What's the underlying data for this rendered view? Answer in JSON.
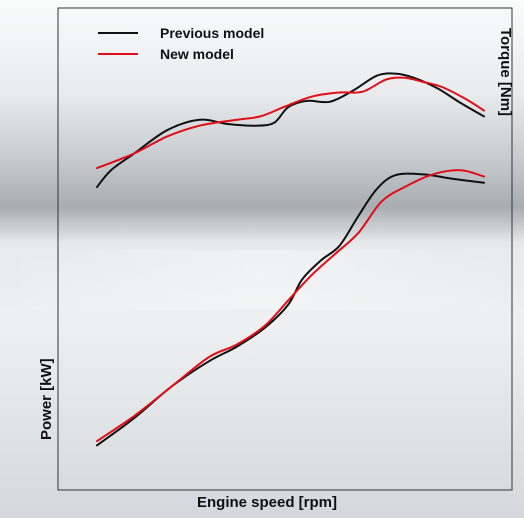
{
  "chart_data": {
    "type": "line",
    "title": "",
    "xlabel": "Engine speed [rpm]",
    "ylabel": "Power [kW]",
    "y2label": "Torque [Nm]",
    "xlim": [
      0,
      100
    ],
    "ylim": [
      0,
      100
    ],
    "grid": false,
    "legend_position": "top-left",
    "series": [
      {
        "name": "Previous model",
        "group": "torque",
        "color": "#111111",
        "points": [
          [
            0,
            65
          ],
          [
            3,
            69
          ],
          [
            8,
            73
          ],
          [
            15,
            78.5
          ],
          [
            22,
            81
          ],
          [
            28,
            80
          ],
          [
            34,
            79.6
          ],
          [
            38,
            80.3
          ],
          [
            41,
            84
          ],
          [
            45,
            85.5
          ],
          [
            50,
            85.3
          ],
          [
            55,
            88
          ],
          [
            60,
            91.5
          ],
          [
            64,
            92
          ],
          [
            68,
            91
          ],
          [
            73,
            88.5
          ],
          [
            78,
            85
          ],
          [
            83,
            81.8
          ]
        ]
      },
      {
        "name": "New model",
        "group": "torque",
        "color": "#e00e18",
        "points": [
          [
            0,
            69.5
          ],
          [
            8,
            73
          ],
          [
            15,
            77
          ],
          [
            22,
            79.6
          ],
          [
            30,
            81
          ],
          [
            35,
            81.8
          ],
          [
            40,
            84
          ],
          [
            46,
            86.5
          ],
          [
            52,
            87.5
          ],
          [
            57,
            87.7
          ],
          [
            62,
            90.6
          ],
          [
            66,
            91
          ],
          [
            70,
            90
          ],
          [
            74,
            88.8
          ],
          [
            79,
            86
          ],
          [
            83,
            83.2
          ]
        ]
      },
      {
        "name": "Previous model",
        "group": "power",
        "color": "#111111",
        "points": [
          [
            0,
            3.5
          ],
          [
            8,
            10
          ],
          [
            16,
            17.5
          ],
          [
            24,
            23.5
          ],
          [
            30,
            27
          ],
          [
            36,
            31.5
          ],
          [
            41,
            37
          ],
          [
            44,
            43
          ],
          [
            48,
            47.5
          ],
          [
            52,
            51
          ],
          [
            56,
            58
          ],
          [
            60,
            64.5
          ],
          [
            64,
            67.8
          ],
          [
            70,
            68
          ],
          [
            76,
            67
          ],
          [
            83,
            66
          ]
        ]
      },
      {
        "name": "New model",
        "group": "power",
        "color": "#e00e18",
        "points": [
          [
            0,
            4.5
          ],
          [
            8,
            10.5
          ],
          [
            16,
            17.5
          ],
          [
            24,
            24.5
          ],
          [
            30,
            27.5
          ],
          [
            36,
            32
          ],
          [
            41,
            38
          ],
          [
            46,
            44
          ],
          [
            51,
            49
          ],
          [
            56,
            54
          ],
          [
            61,
            61.5
          ],
          [
            66,
            65
          ],
          [
            72,
            68
          ],
          [
            78,
            69
          ],
          [
            83,
            67.5
          ]
        ]
      }
    ]
  }
}
